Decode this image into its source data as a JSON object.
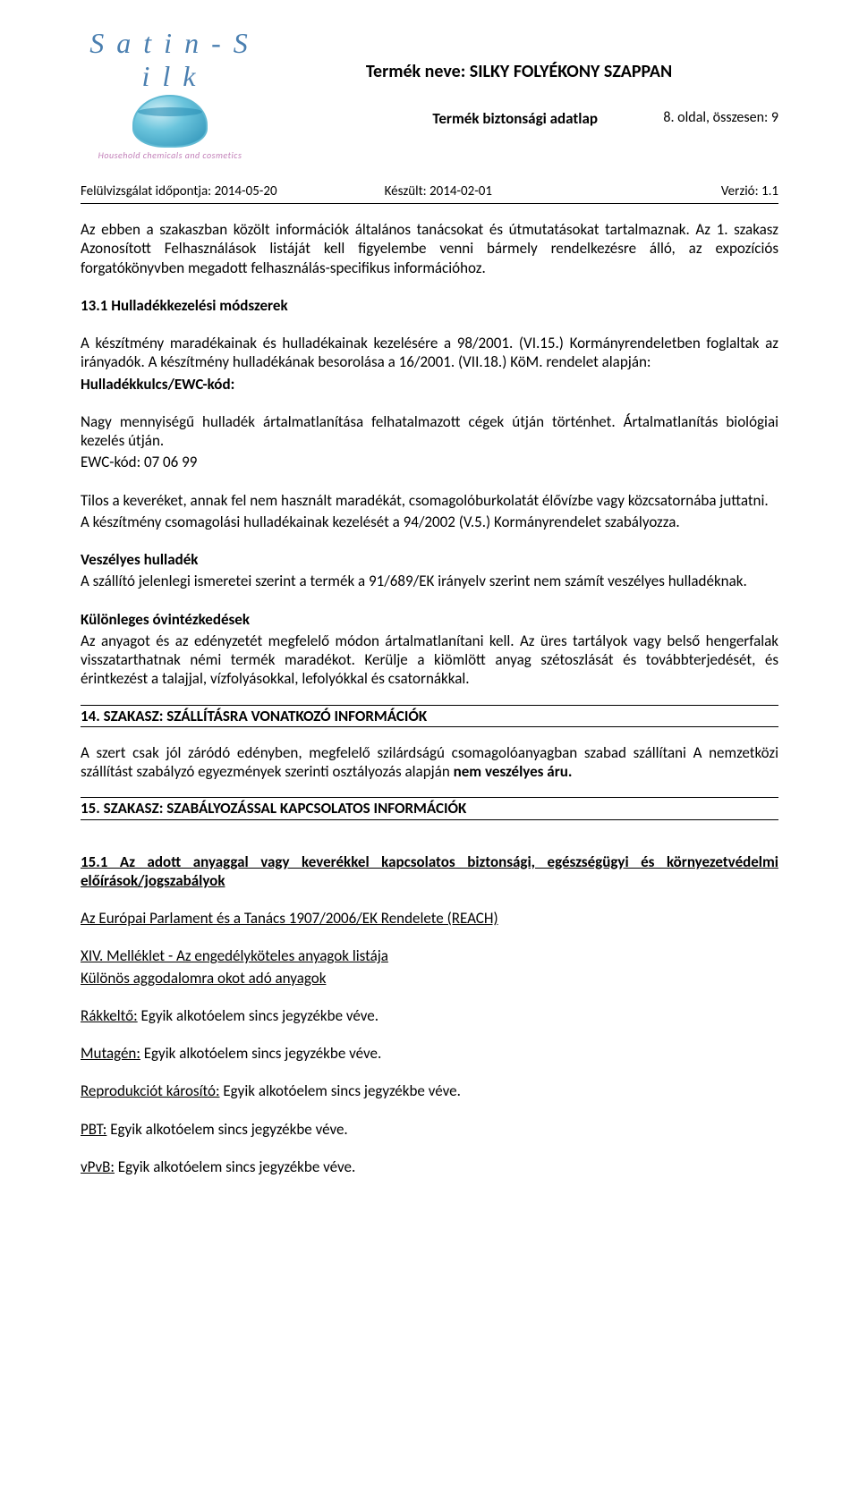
{
  "logo": {
    "brand": "S a t i n - S i l k",
    "tagline": "Household chemicals and cosmetics"
  },
  "header": {
    "product_name_label": "Termék neve: SILKY FOLYÉKONY SZAPPAN",
    "sheet_label": "Termék biztonsági adatlap",
    "page_info": "8. oldal, összesen: 9",
    "revision_label": "Felülvizsgálat időpontja: 2014-05-20",
    "prepared_label": "Készült: 2014-02-01",
    "version_label": "Verzió: 1.1"
  },
  "intro": {
    "p1": "Az ebben a szakaszban közölt információk általános tanácsokat és útmutatásokat tartalmaznak. Az 1. szakasz Azonosított Felhasználások listáját kell figyelembe venni bármely rendelkezésre álló, az expozíciós forgatókönyvben megadott felhasználás-specifikus információhoz."
  },
  "s13_1": {
    "heading": "13.1 Hulladékkezelési módszerek",
    "p1a": "A  készítmény  maradékainak  és  hulladékainak  kezelésére  a 98/2001. (VI.15.) Kormányrendeletben foglaltak az irányadók. A készítmény hulladékának besorolása a 16/2001. (VII.18.) KöM. rendelet alapján:",
    "p1b": "Hulladékkulcs/EWC-kód:",
    "p2": "Nagy mennyiségű hulladék ártalmatlanítása felhatalmazott cégek útján történhet. Ártalmatlanítás biológiai kezelés útján.",
    "p3": "EWC-kód: 07 06 99",
    "p4": "Tilos a keveréket, annak fel nem használt maradékát, csomagolóburkolatát élővízbe vagy közcsatornába juttatni.",
    "p5": "A készítmény csomagolási hulladékainak kezelését a 94/2002 (V.5.) Kormányrendelet szabályozza.",
    "haz_heading": "Veszélyes hulladék",
    "haz_text": "A szállító jelenlegi ismeretei szerint a termék a 91/689/EK irányelv szerint nem számít veszélyes hulladéknak.",
    "spec_heading": "Különleges óvintézkedések",
    "spec_text": "Az anyagot és az edényzetét megfelelő módon ártalmatlanítani kell. Az üres tartályok vagy belső hengerfalak visszatarthatnak némi termék maradékot. Kerülje a kiömlött anyag szétoszlását és továbbterjedését, és érintkezést a talajjal, vízfolyásokkal, lefolyókkal és csatornákkal."
  },
  "s14": {
    "heading": "14. SZAKASZ: SZÁLLÍTÁSRA VONATKOZÓ INFORMÁCIÓK",
    "p1": "A  szert  csak  jól  záródó  edényben,  megfelelő  szilárdságú  csomagolóanyagban  szabad  szállítani  A  nemzetközi   szállítást  szabályzó  egyezmények  szerinti  osztályozás  alapján  ",
    "p1b": "nem veszélyes áru."
  },
  "s15": {
    "heading": "15. SZAKASZ: SZABÁLYOZÁSSAL KAPCSOLATOS INFORMÁCIÓK",
    "s15_1_heading": "15.1 Az adott anyaggal vagy keverékkel kapcsolatos biztonsági, egészségügyi és környezetvédelmi előírások/jogszabályok",
    "reach": "Az Európai Parlament és a Tanács 1907/2006/EK Rendelete (REACH)",
    "annex14": "XIV. Melléklet - Az engedélyköteles anyagok listája",
    "concern": "Különös aggodalomra okot adó anyagok",
    "carc_label": "Rákkeltő:",
    "carc_text": " Egyik alkotóelem sincs jegyzékbe véve.",
    "mut_label": "Mutagén:",
    "mut_text": " Egyik alkotóelem sincs jegyzékbe véve.",
    "repro_label": "Reprodukciót károsító:",
    "repro_text": " Egyik alkotóelem sincs jegyzékbe véve.",
    "pbt_label": "PBT:",
    "pbt_text": " Egyik alkotóelem sincs jegyzékbe véve.",
    "vpvb_label": "vPvB:",
    "vpvb_text": " Egyik alkotóelem sincs jegyzékbe véve."
  }
}
